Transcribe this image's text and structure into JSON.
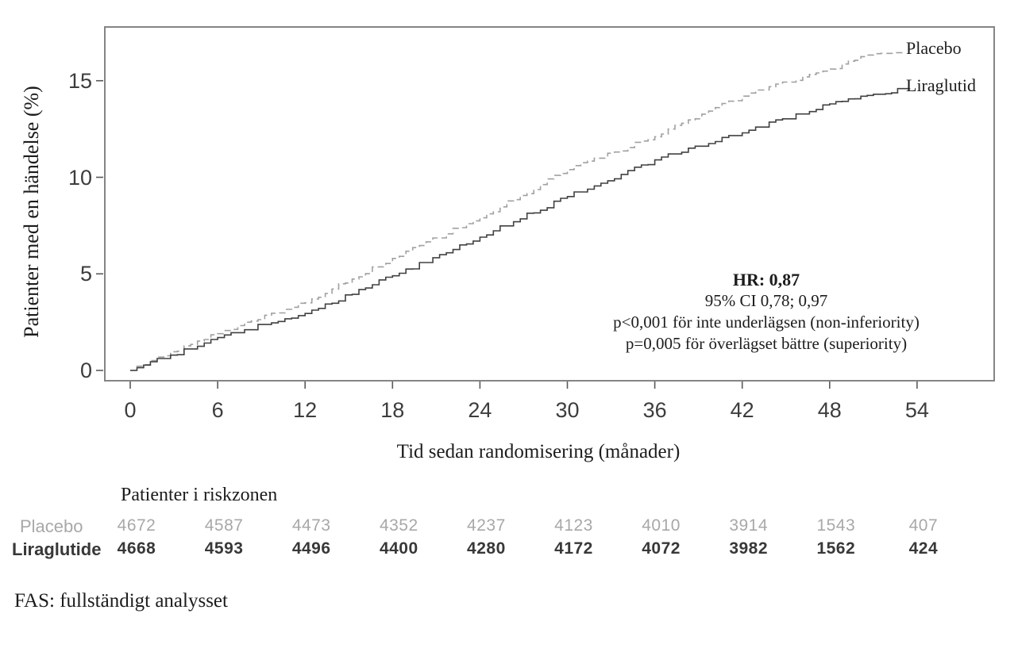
{
  "chart_data": {
    "type": "line",
    "title": "",
    "xlabel": "Tid sedan randomisering (månader)",
    "ylabel": "Patienter med en händelse (%)",
    "x_ticks": [
      0,
      6,
      12,
      18,
      24,
      30,
      36,
      42,
      48,
      54
    ],
    "y_ticks": [
      0,
      5,
      10,
      15
    ],
    "xlim": [
      0,
      59.7
    ],
    "ylim": [
      0,
      17.8
    ],
    "grid": false,
    "legend_position": "inline-right-of-curves",
    "series": [
      {
        "name": "Placebo",
        "line_style": "dashed",
        "color": "#a0a0a0",
        "x": [
          0,
          6,
          12,
          18,
          24,
          30,
          36,
          42,
          48,
          51,
          53
        ],
        "y": [
          0,
          1.9,
          3.5,
          5.8,
          7.9,
          10.4,
          12.1,
          14.2,
          15.6,
          16.4,
          16.5
        ]
      },
      {
        "name": "Liraglutid",
        "line_style": "solid",
        "color": "#404040",
        "x": [
          0,
          6,
          12,
          18,
          24,
          30,
          36,
          42,
          48,
          51,
          53.5
        ],
        "y": [
          0,
          1.7,
          2.95,
          4.9,
          6.9,
          9.0,
          10.9,
          12.3,
          13.8,
          14.3,
          14.6
        ]
      }
    ],
    "annotation": {
      "line1": "HR: 0,87",
      "line2": "95% CI 0,78; 0,97",
      "line3": "p<0,001 för inte underlägsen (non-inferiority)",
      "line4": "p=0,005 för överlägset bättre (superiority)"
    }
  },
  "risk_table": {
    "title": "Patienter i riskzonen",
    "rows": [
      {
        "label": "Placebo",
        "values": [
          "4672",
          "4587",
          "4473",
          "4352",
          "4237",
          "4123",
          "4010",
          "3914",
          "1543",
          "407"
        ]
      },
      {
        "label": "Liraglutide",
        "values": [
          "4668",
          "4593",
          "4496",
          "4400",
          "4280",
          "4172",
          "4072",
          "3982",
          "1562",
          "424"
        ]
      }
    ]
  },
  "footnote": "FAS: fullständigt analysset",
  "colors": {
    "placebo_line": "#a0a0a0",
    "liraglutid_line": "#404040",
    "axis_border": "#858585",
    "tick": "#5a5a5a",
    "tick_label": "#3d3d3d",
    "risk_row_placebo": "#a8a8a8",
    "risk_row_liraglutide": "#383838",
    "text": "#1c1c1c"
  }
}
